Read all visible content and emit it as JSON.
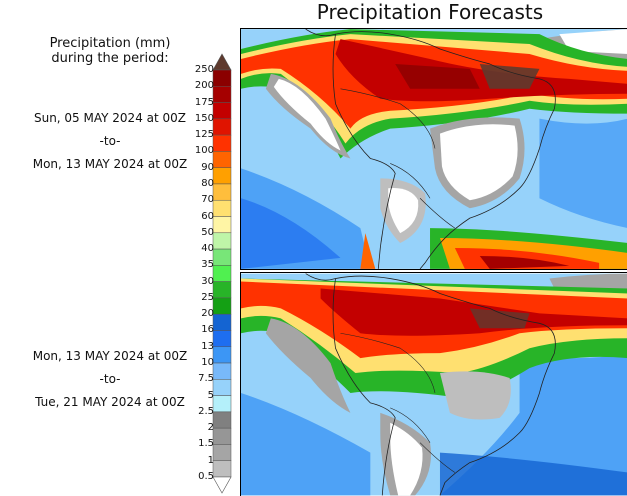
{
  "title": "Precipitation Forecasts",
  "legend": {
    "title_line1": "Precipitation (mm)",
    "title_line2": "during the period:",
    "labels": [
      "250",
      "200",
      "175",
      "150",
      "125",
      "100",
      "90",
      "80",
      "70",
      "60",
      "50",
      "40",
      "35",
      "30",
      "25",
      "20",
      "16",
      "13",
      "10",
      "7.5",
      "5",
      "2.5",
      "2",
      "1.5",
      "1",
      "0.5"
    ],
    "colors": [
      "#8b0000",
      "#a50000",
      "#c30000",
      "#e01400",
      "#ff3200",
      "#ff6400",
      "#ffa000",
      "#ffbe3c",
      "#ffe070",
      "#fff5a5",
      "#bff5a8",
      "#78e678",
      "#50f050",
      "#28b428",
      "#14a014",
      "#1464d2",
      "#1e6ef0",
      "#3c96f5",
      "#78b9fa",
      "#96d2fa",
      "#b4f0fa",
      "#808080",
      "#969696",
      "#a5a5a5",
      "#bebebe"
    ],
    "over_color": "#5e3a2e",
    "under_color": "#ffffff"
  },
  "periods": [
    {
      "start": "Sun, 05 MAY 2024 at 00Z",
      "sep": "-to-",
      "end": "Mon, 13 MAY 2024 at 00Z"
    },
    {
      "start": "Mon, 13 MAY 2024 at 00Z",
      "sep": "-to-",
      "end": "Tue, 21 MAY 2024 at 00Z"
    }
  ]
}
